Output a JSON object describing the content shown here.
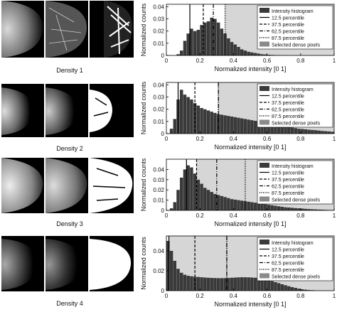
{
  "figure": {
    "legend_labels": [
      "Intensity histogram",
      "12.5 percentile",
      "37.5 percentile",
      "62.5 percentile",
      "87.5 percentile",
      "Selected dense pixels"
    ],
    "ylabel": "Normalized counts",
    "xlabel": "Normalized intensity [0 1]",
    "xticks": [
      "0",
      "0.2",
      "0.4",
      "0.6",
      "0.8",
      "1"
    ],
    "rows": [
      {
        "caption": "Density 1",
        "yticks": [
          "0",
          "0.01",
          "0.02",
          "0.03",
          "0.04"
        ]
      },
      {
        "caption": "Density 2",
        "yticks": [
          "0",
          "0.01",
          "0.02",
          "0.03",
          "0.04"
        ]
      },
      {
        "caption": "Density 3",
        "yticks": [
          "0",
          "0.01",
          "0.02",
          "0.03",
          "0.04"
        ]
      },
      {
        "caption": "Density 4",
        "yticks": [
          "0",
          "0.02",
          "0.04"
        ]
      }
    ]
  },
  "chart_data": [
    {
      "type": "bar",
      "xlabel": "Normalized intensity [0 1]",
      "ylabel": "Normalized counts",
      "xlim": [
        0,
        1
      ],
      "ylim": [
        0,
        0.042
      ],
      "x": [
        0.07,
        0.09,
        0.11,
        0.13,
        0.15,
        0.17,
        0.19,
        0.21,
        0.23,
        0.25,
        0.27,
        0.29,
        0.31,
        0.33,
        0.35,
        0.37,
        0.39,
        0.41,
        0.43,
        0.45,
        0.47,
        0.49,
        0.51,
        0.53,
        0.55,
        0.57,
        0.59,
        0.61,
        0.63,
        0.65,
        0.67,
        0.69
      ],
      "values": [
        0.001,
        0.004,
        0.012,
        0.018,
        0.022,
        0.02,
        0.021,
        0.025,
        0.027,
        0.028,
        0.031,
        0.03,
        0.027,
        0.022,
        0.018,
        0.014,
        0.011,
        0.009,
        0.007,
        0.005,
        0.004,
        0.003,
        0.0025,
        0.002,
        0.0015,
        0.001,
        0.0008,
        0.0006,
        0.0004,
        0.0003,
        0.0002,
        0.0001
      ],
      "percentiles": {
        "12.5": 0.14,
        "37.5": 0.22,
        "62.5": 0.28,
        "87.5": 0.35
      },
      "dense_from": 0.35,
      "legend": "top-right"
    },
    {
      "type": "bar",
      "xlabel": "Normalized intensity [0 1]",
      "ylabel": "Normalized counts",
      "xlim": [
        0,
        1
      ],
      "ylim": [
        0,
        0.042
      ],
      "x": [
        0.03,
        0.05,
        0.07,
        0.09,
        0.11,
        0.13,
        0.15,
        0.17,
        0.19,
        0.21,
        0.23,
        0.25,
        0.27,
        0.29,
        0.31,
        0.33,
        0.35,
        0.37,
        0.39,
        0.41,
        0.43,
        0.45,
        0.47,
        0.49,
        0.51,
        0.53,
        0.55,
        0.57,
        0.59,
        0.61,
        0.63,
        0.65,
        0.67,
        0.69,
        0.71,
        0.73,
        0.75,
        0.77,
        0.79,
        0.81,
        0.83,
        0.85,
        0.87,
        0.89,
        0.91,
        0.93,
        0.95,
        0.97,
        0.99
      ],
      "values": [
        0.004,
        0.012,
        0.028,
        0.036,
        0.032,
        0.03,
        0.028,
        0.025,
        0.023,
        0.021,
        0.02,
        0.019,
        0.018,
        0.017,
        0.016,
        0.0155,
        0.015,
        0.0145,
        0.014,
        0.0135,
        0.013,
        0.0125,
        0.012,
        0.0115,
        0.011,
        0.0105,
        0.01,
        0.0095,
        0.009,
        0.0085,
        0.008,
        0.0075,
        0.007,
        0.0065,
        0.006,
        0.0055,
        0.005,
        0.0045,
        0.004,
        0.0038,
        0.0035,
        0.0032,
        0.003,
        0.0028,
        0.0025,
        0.0022,
        0.002,
        0.0018,
        0.0015
      ],
      "percentiles": {
        "12.5": 0.07,
        "37.5": 0.17,
        "62.5": 0.31,
        "87.5": 0.31
      },
      "dense_from": 0.31,
      "legend": "top-right"
    },
    {
      "type": "bar",
      "xlabel": "Normalized intensity [0 1]",
      "ylabel": "Normalized counts",
      "xlim": [
        0,
        1
      ],
      "ylim": [
        0,
        0.05
      ],
      "x": [
        0.03,
        0.05,
        0.07,
        0.09,
        0.11,
        0.13,
        0.15,
        0.17,
        0.19,
        0.21,
        0.23,
        0.25,
        0.27,
        0.29,
        0.31,
        0.33,
        0.35,
        0.37,
        0.39,
        0.41,
        0.43,
        0.45,
        0.47,
        0.49,
        0.51,
        0.53,
        0.55,
        0.57,
        0.59,
        0.61,
        0.63,
        0.65,
        0.67,
        0.69,
        0.71,
        0.73,
        0.75,
        0.77,
        0.79,
        0.81,
        0.83,
        0.85,
        0.87,
        0.89,
        0.91,
        0.93,
        0.95,
        0.97,
        0.99
      ],
      "values": [
        0.002,
        0.008,
        0.02,
        0.032,
        0.04,
        0.044,
        0.042,
        0.036,
        0.03,
        0.026,
        0.022,
        0.02,
        0.018,
        0.016,
        0.015,
        0.014,
        0.013,
        0.012,
        0.011,
        0.0105,
        0.01,
        0.0095,
        0.009,
        0.0085,
        0.008,
        0.0075,
        0.007,
        0.0065,
        0.006,
        0.0055,
        0.005,
        0.0045,
        0.004,
        0.0035,
        0.003,
        0.0028,
        0.0025,
        0.0022,
        0.002,
        0.0018,
        0.0015,
        0.0013,
        0.0011,
        0.001,
        0.0008,
        0.0007,
        0.0005,
        0.0004,
        0.0003
      ],
      "percentiles": {
        "12.5": 0.12,
        "37.5": 0.18,
        "62.5": 0.3,
        "87.5": 0.47
      },
      "dense_from": 0.18,
      "legend": "top-right"
    },
    {
      "type": "bar",
      "xlabel": "Normalized intensity [0 1]",
      "ylabel": "Normalized counts",
      "xlim": [
        0,
        1
      ],
      "ylim": [
        0,
        0.055
      ],
      "x": [
        0.01,
        0.03,
        0.05,
        0.07,
        0.09,
        0.11,
        0.13,
        0.15,
        0.17,
        0.19,
        0.21,
        0.23,
        0.25,
        0.27,
        0.29,
        0.31,
        0.33,
        0.35,
        0.37,
        0.39,
        0.41,
        0.43,
        0.45,
        0.47,
        0.49,
        0.51,
        0.53,
        0.55,
        0.57,
        0.59,
        0.61,
        0.63,
        0.65,
        0.67,
        0.69,
        0.71,
        0.73,
        0.75,
        0.77,
        0.79,
        0.81,
        0.83,
        0.85,
        0.87,
        0.89,
        0.91,
        0.93,
        0.95,
        0.97,
        0.99
      ],
      "values": [
        0.05,
        0.04,
        0.03,
        0.022,
        0.018,
        0.016,
        0.015,
        0.0145,
        0.014,
        0.0138,
        0.0135,
        0.0132,
        0.013,
        0.0128,
        0.0127,
        0.0126,
        0.0126,
        0.0127,
        0.0128,
        0.013,
        0.0132,
        0.0134,
        0.0135,
        0.0135,
        0.0134,
        0.0132,
        0.013,
        0.0125,
        0.012,
        0.0113,
        0.0105,
        0.0096,
        0.0086,
        0.0076,
        0.0065,
        0.0055,
        0.0045,
        0.0036,
        0.0028,
        0.002,
        0.0014,
        0.001,
        0.0007,
        0.0005,
        0.0003,
        0.0002,
        0.0001,
        0.0001,
        0.0001,
        0.0
      ],
      "percentiles": {
        "12.5": 0.015,
        "37.5": 0.17,
        "62.5": 0.36,
        "87.5": 0.36
      },
      "dense_from": 0.015,
      "legend": "top-right"
    }
  ]
}
